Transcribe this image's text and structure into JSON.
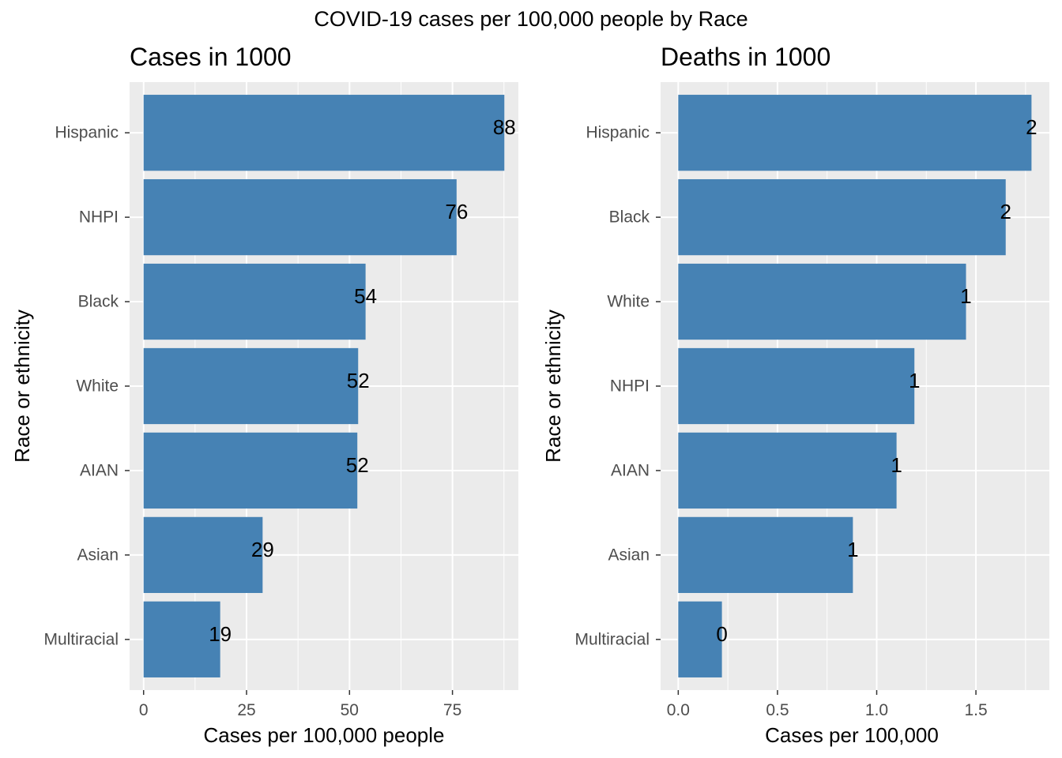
{
  "chart_data": [
    {
      "type": "bar",
      "orientation": "horizontal",
      "suptitle": "COVID-19 cases per 100,000 people by Race",
      "title": "Cases in 1000",
      "xlabel": "Cases per 100,000 people",
      "ylabel": "Race or ethnicity",
      "categories": [
        "Hispanic",
        "NHPI",
        "Black",
        "White",
        "AIAN",
        "Asian",
        "Multiracial"
      ],
      "values": [
        87.6,
        76.0,
        53.9,
        52.1,
        51.9,
        28.9,
        18.6
      ],
      "data_labels": [
        "88",
        "76",
        "54",
        "52",
        "52",
        "29",
        "19"
      ],
      "xlim": [
        -3.4,
        91
      ],
      "xticks": [
        0,
        25,
        50,
        75
      ],
      "xtick_labels": [
        "0",
        "25",
        "50",
        "75"
      ],
      "grid": true,
      "bar_color": "#4682b4",
      "panel_color": "#ebebeb",
      "grid_color": "#ffffff"
    },
    {
      "type": "bar",
      "orientation": "horizontal",
      "title": "Deaths in 1000",
      "xlabel": "Cases per 100,000",
      "ylabel": "Race or ethnicity",
      "categories": [
        "Hispanic",
        "Black",
        "White",
        "NHPI",
        "AIAN",
        "Asian",
        "Multiracial"
      ],
      "values": [
        1.78,
        1.65,
        1.45,
        1.19,
        1.1,
        0.88,
        0.22
      ],
      "data_labels": [
        "2",
        "2",
        "1",
        "1",
        "1",
        "1",
        "0"
      ],
      "xlim": [
        -0.089,
        1.87
      ],
      "xticks": [
        0.0,
        0.5,
        1.0,
        1.5
      ],
      "xtick_labels": [
        "0.0",
        "0.5",
        "1.0",
        "1.5"
      ],
      "grid": true,
      "bar_color": "#4682b4",
      "panel_color": "#ebebeb",
      "grid_color": "#ffffff"
    }
  ]
}
